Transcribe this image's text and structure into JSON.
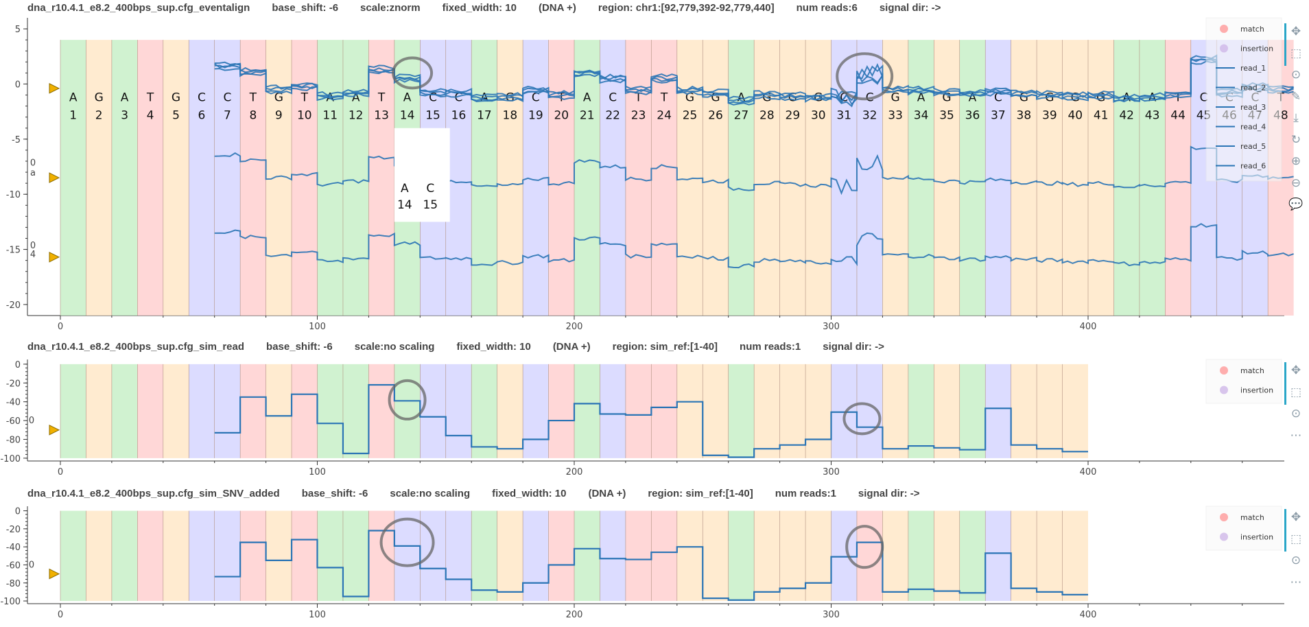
{
  "plots": [
    {
      "id": "eventalign",
      "title_parts": [
        "dna_r10.4.1_e8.2_400bps_sup.cfg_eventalign",
        "base_shift: -6",
        "scale:znorm",
        "fixed_width: 10",
        "(DNA +)",
        "region: chr1:[92,779,392-92,779,440]",
        "num reads:6",
        "signal dir: ->"
      ],
      "legend": [
        "match",
        "insertion",
        "read_1",
        "read_2",
        "read_3",
        "read_4",
        "read_5",
        "read_6"
      ],
      "toolbar_icons": [
        "pan-icon",
        "box-zoom-icon",
        "wheel-zoom-icon",
        "edit-icon",
        "save-icon",
        "reset-icon",
        "zoom-in-icon",
        "zoom-out-icon",
        "hover-icon"
      ],
      "hover_tooltip": {
        "bases": [
          "A",
          "C"
        ],
        "positions": [
          "14",
          "15"
        ]
      },
      "side_labels": [
        "0",
        "a",
        "0",
        "4"
      ]
    },
    {
      "id": "sim_read",
      "title_parts": [
        "dna_r10.4.1_e8.2_400bps_sup.cfg_sim_read",
        "base_shift: -6",
        "scale:no scaling",
        "fixed_width: 10",
        "(DNA +)",
        "region: sim_ref:[1-40]",
        "num reads:1",
        "signal dir: ->"
      ],
      "legend": [
        "match",
        "insertion"
      ],
      "toolbar_icons": [
        "pan-icon",
        "box-zoom-icon",
        "wheel-zoom-icon",
        "more-icon"
      ],
      "side_labels": [
        "0"
      ]
    },
    {
      "id": "sim_snv",
      "title_parts": [
        "dna_r10.4.1_e8.2_400bps_sup.cfg_sim_SNV_added",
        "base_shift: -6",
        "scale:no scaling",
        "fixed_width: 10",
        "(DNA +)",
        "region: sim_ref:[1-40]",
        "num reads:1",
        "signal dir: ->"
      ],
      "legend": [
        "match",
        "insertion"
      ],
      "toolbar_icons": [
        "pan-icon",
        "box-zoom-icon",
        "wheel-zoom-icon",
        "more-icon"
      ],
      "side_labels": [
        "0"
      ]
    }
  ],
  "colors": {
    "A": "#c8f0c8",
    "C": "#d6d6ff",
    "G": "#ffe8c8",
    "T": "#ffd0d0",
    "read": "#2a74b5",
    "annotation": "#666666",
    "marker": "#f0b000"
  },
  "chart_data": [
    {
      "type": "line",
      "title": "dna_r10.4.1_e8.2_400bps_sup.cfg_eventalign",
      "xlim": [
        -10,
        475
      ],
      "ylim": [
        -21,
        6
      ],
      "xticks": [
        0,
        100,
        200,
        300,
        400
      ],
      "yticks": [
        5,
        0,
        -5,
        -10,
        -15,
        -20
      ],
      "bases": [
        "A",
        "G",
        "A",
        "T",
        "G",
        "C",
        "C",
        "T",
        "G",
        "T",
        "A",
        "A",
        "T",
        "A",
        "C",
        "C",
        "A",
        "G",
        "C",
        "T",
        "A",
        "C",
        "T",
        "T",
        "G",
        "G",
        "A",
        "G",
        "G",
        "G",
        "C",
        "C",
        "G",
        "A",
        "G",
        "A",
        "C",
        "G",
        "G",
        "G",
        "G",
        "A",
        "A",
        "T",
        "C",
        "C",
        "C",
        "T"
      ],
      "base_positions": [
        "1",
        "2",
        "3",
        "4",
        "5",
        "6",
        "7",
        "8",
        "9",
        "10",
        "11",
        "12",
        "13",
        "14",
        "15",
        "16",
        "17",
        "18",
        "19",
        "20",
        "21",
        "22",
        "23",
        "24",
        "25",
        "26",
        "27",
        "28",
        "29",
        "30",
        "31",
        "32",
        "33",
        "34",
        "35",
        "36",
        "37",
        "38",
        "39",
        "40",
        "41",
        "42",
        "43",
        "44",
        "45",
        "46",
        "47",
        "48"
      ],
      "base_width": 10,
      "band_ymin": -21,
      "band_ymax": 4,
      "step_levels": [
        0.8,
        1.2,
        1.8,
        1.5,
        0.7,
        -0.3,
        1.6,
        1.1,
        -0.5,
        -0.2,
        -1.1,
        -0.8,
        1.3,
        0.5,
        -0.8,
        -0.8,
        -1.3,
        -1.2,
        -0.6,
        -1.0,
        1.0,
        0.5,
        -0.6,
        0.5,
        -0.6,
        -0.8,
        -1.5,
        -1.0,
        -1.1,
        -1.2,
        -1.2,
        0.9,
        -0.5,
        -0.6,
        -0.8,
        -0.9,
        -0.7,
        -0.9,
        -1.0,
        -1.1,
        -1.0,
        -1.3,
        -1.2,
        -0.9,
        2.2,
        -0.8,
        -0.3,
        -0.5
      ],
      "series": [
        {
          "name": "read_1",
          "offset": 0,
          "start_base": 6
        },
        {
          "name": "read_2",
          "offset": 0,
          "start_base": 6
        },
        {
          "name": "read_3",
          "offset": 0,
          "start_base": 6
        },
        {
          "name": "read_4",
          "offset": 0,
          "start_base": 6
        },
        {
          "name": "read_5",
          "offset": -8,
          "start_base": 6
        },
        {
          "name": "read_6",
          "offset": -15,
          "start_base": 6
        }
      ]
    },
    {
      "type": "line",
      "title": "dna_r10.4.1_e8.2_400bps_sup.cfg_sim_read",
      "xlim": [
        -10,
        475
      ],
      "ylim": [
        -103,
        5
      ],
      "xticks": [
        0,
        100,
        200,
        300,
        400
      ],
      "yticks": [
        0,
        -20,
        -40,
        -60,
        -80,
        -100
      ],
      "band_ymin": -100,
      "band_ymax": 0,
      "band_count": 40,
      "base_width": 10,
      "x": [
        60,
        70,
        70,
        80,
        80,
        90,
        90,
        100,
        100,
        110,
        110,
        120,
        120,
        130,
        130,
        140,
        140,
        150,
        150,
        160,
        160,
        170,
        170,
        180,
        180,
        190,
        190,
        200,
        200,
        210,
        210,
        220,
        220,
        230,
        230,
        240,
        240,
        250,
        250,
        260,
        260,
        270,
        270,
        280,
        280,
        290,
        290,
        300,
        300,
        310,
        310,
        320,
        320,
        330,
        330,
        340,
        340,
        350,
        350,
        360,
        360,
        370,
        370,
        380,
        380,
        390,
        390,
        400
      ],
      "values": [
        -73,
        -73,
        -35,
        -35,
        -55,
        -55,
        -32,
        -32,
        -63,
        -63,
        -95,
        -95,
        -22,
        -22,
        -39,
        -39,
        -56,
        -56,
        -76,
        -76,
        -88,
        -88,
        -90,
        -90,
        -80,
        -80,
        -60,
        -60,
        -42,
        -42,
        -53,
        -53,
        -54,
        -54,
        -46,
        -46,
        -40,
        -40,
        -97,
        -97,
        -99,
        -99,
        -90,
        -90,
        -86,
        -86,
        -80,
        -80,
        -51,
        -51,
        -67,
        -67,
        -90,
        -90,
        -87,
        -87,
        -89,
        -89,
        -91,
        -91,
        -47,
        -47,
        -86,
        -86,
        -90,
        -90,
        -93,
        -93
      ]
    },
    {
      "type": "line",
      "title": "dna_r10.4.1_e8.2_400bps_sup.cfg_sim_SNV_added",
      "xlim": [
        -10,
        475
      ],
      "ylim": [
        -103,
        5
      ],
      "xticks": [
        0,
        100,
        200,
        300,
        400
      ],
      "yticks": [
        0,
        -20,
        -40,
        -60,
        -80,
        -100
      ],
      "band_ymin": -100,
      "band_ymax": 0,
      "band_count": 40,
      "base_width": 10,
      "x": [
        60,
        70,
        70,
        80,
        80,
        90,
        90,
        100,
        100,
        110,
        110,
        120,
        120,
        130,
        130,
        140,
        140,
        150,
        150,
        160,
        160,
        170,
        170,
        180,
        180,
        190,
        190,
        200,
        200,
        210,
        210,
        220,
        220,
        230,
        230,
        240,
        240,
        250,
        250,
        260,
        260,
        270,
        270,
        280,
        280,
        290,
        290,
        300,
        300,
        310,
        310,
        320,
        320,
        330,
        330,
        340,
        340,
        350,
        350,
        360,
        360,
        370,
        370,
        380,
        380,
        390,
        390,
        400
      ],
      "values": [
        -73,
        -73,
        -35,
        -35,
        -55,
        -55,
        -32,
        -32,
        -63,
        -63,
        -95,
        -95,
        -22,
        -22,
        -39,
        -39,
        -64,
        -64,
        -76,
        -76,
        -88,
        -88,
        -90,
        -90,
        -80,
        -80,
        -60,
        -60,
        -42,
        -42,
        -53,
        -53,
        -54,
        -54,
        -46,
        -46,
        -40,
        -40,
        -97,
        -97,
        -99,
        -99,
        -90,
        -90,
        -86,
        -86,
        -80,
        -80,
        -51,
        -51,
        -35,
        -35,
        -90,
        -90,
        -87,
        -87,
        -89,
        -89,
        -91,
        -91,
        -47,
        -47,
        -86,
        -86,
        -90,
        -90,
        -93,
        -93
      ]
    }
  ],
  "bases_sim": [
    "A",
    "G",
    "A",
    "T",
    "G",
    "C",
    "C",
    "T",
    "G",
    "T",
    "A",
    "A",
    "T",
    "A",
    "C",
    "C",
    "A",
    "G",
    "C",
    "T",
    "A",
    "C",
    "T",
    "T",
    "G",
    "G",
    "A",
    "G",
    "G",
    "G",
    "C",
    "C",
    "G",
    "A",
    "G",
    "A",
    "C",
    "G",
    "G",
    "G"
  ],
  "bases_snv": [
    "A",
    "G",
    "A",
    "T",
    "G",
    "C",
    "C",
    "T",
    "G",
    "T",
    "A",
    "A",
    "T",
    "C",
    "C",
    "C",
    "A",
    "G",
    "C",
    "T",
    "A",
    "C",
    "T",
    "T",
    "G",
    "G",
    "A",
    "G",
    "G",
    "G",
    "C",
    "T",
    "G",
    "A",
    "G",
    "A",
    "C",
    "G",
    "G",
    "G"
  ]
}
